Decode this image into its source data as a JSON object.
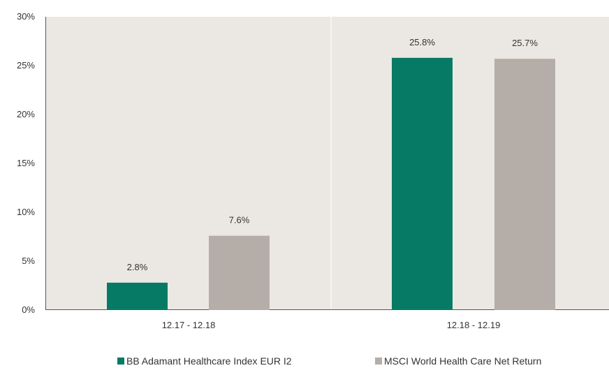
{
  "chart_data": {
    "type": "bar",
    "categories": [
      "12.17 - 12.18",
      "12.18 - 12.19"
    ],
    "series": [
      {
        "name": "BB Adamant Healthcare Index EUR I2",
        "values": [
          2.8,
          25.8
        ],
        "labels": [
          "2.8%",
          "25.8%"
        ],
        "color": "#067a65"
      },
      {
        "name": "MSCI World Health Care Net Return",
        "values": [
          7.6,
          25.7
        ],
        "labels": [
          "7.6%",
          "25.7%"
        ],
        "color": "#b5ada7"
      }
    ],
    "y_ticks": [
      "0%",
      "5%",
      "10%",
      "15%",
      "20%",
      "25%",
      "30%"
    ],
    "ylim": [
      0,
      30
    ],
    "grid": false,
    "background": "#ebe8e4",
    "legend_position": "bottom"
  }
}
